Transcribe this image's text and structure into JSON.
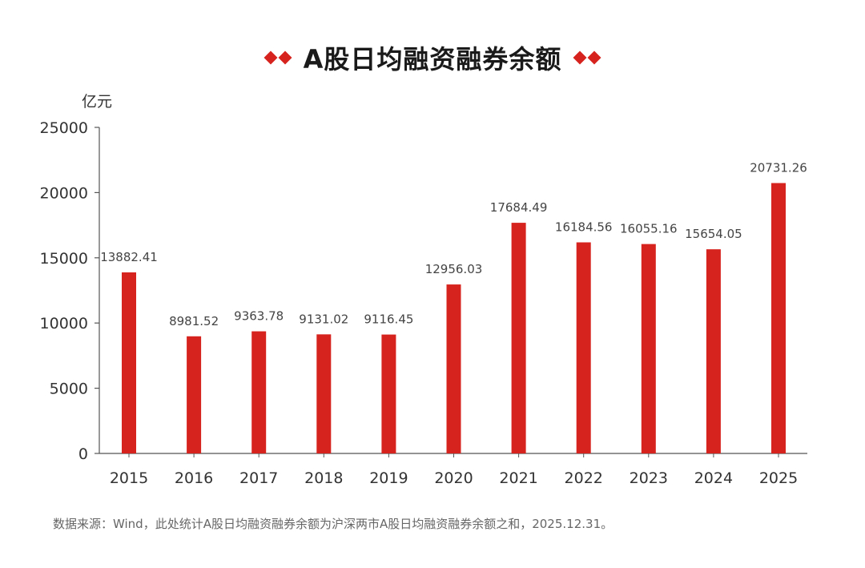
{
  "chart_data": {
    "type": "bar",
    "title": "A股日均融资融券余额",
    "ylabel": "亿元",
    "xlabel": "",
    "ylim": [
      0,
      25000
    ],
    "yticks": [
      0,
      5000,
      10000,
      15000,
      20000,
      25000
    ],
    "categories": [
      "2015",
      "2016",
      "2017",
      "2018",
      "2019",
      "2020",
      "2021",
      "2022",
      "2023",
      "2024",
      "2025"
    ],
    "values": [
      13882.41,
      8981.52,
      9363.78,
      9131.02,
      9116.45,
      12956.03,
      17684.49,
      16184.56,
      16055.16,
      15654.05,
      20731.26
    ],
    "labels": [
      "13882.41",
      "8981.52",
      "9363.78",
      "9131.02",
      "9116.45",
      "12956.03",
      "17684.49",
      "16184.56",
      "16055.16",
      "15654.05",
      "20731.26"
    ],
    "grid": false,
    "colors": {
      "bar": "#d7231e",
      "axis": "#555555",
      "text": "#333333",
      "label": "#444444"
    }
  },
  "footnote": "数据来源：Wind，此处统计A股日均融资融券余额为沪深两市A股日均融资融券余额之和，2025.12.31。",
  "decor": {
    "accent": "#d7231e",
    "left_icon": "double-diamond-icon",
    "right_icon": "double-diamond-icon"
  }
}
